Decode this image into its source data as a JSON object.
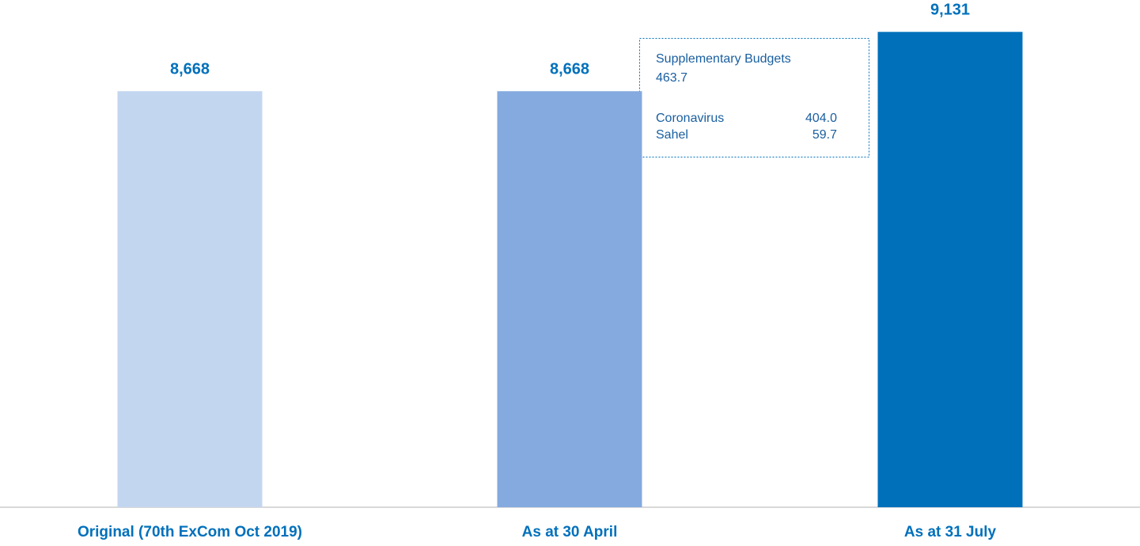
{
  "chart_data": {
    "type": "bar",
    "categories": [
      "Original (70th ExCom Oct 2019)",
      "As at 30 April",
      "As at 31 July"
    ],
    "values": [
      8668,
      8668,
      9131
    ],
    "value_labels": [
      "8,668",
      "8,668",
      "9,131"
    ],
    "colors": [
      "#c3d6f0",
      "#84aadf",
      "#0070bb"
    ],
    "ylim": [
      5420,
      9380
    ],
    "annotation": {
      "title": "Supplementary Budgets",
      "total": "463.7",
      "items": [
        {
          "name": "Coronavirus",
          "label": "404.0"
        },
        {
          "name": "Sahel",
          "label": "59.7"
        }
      ]
    }
  }
}
